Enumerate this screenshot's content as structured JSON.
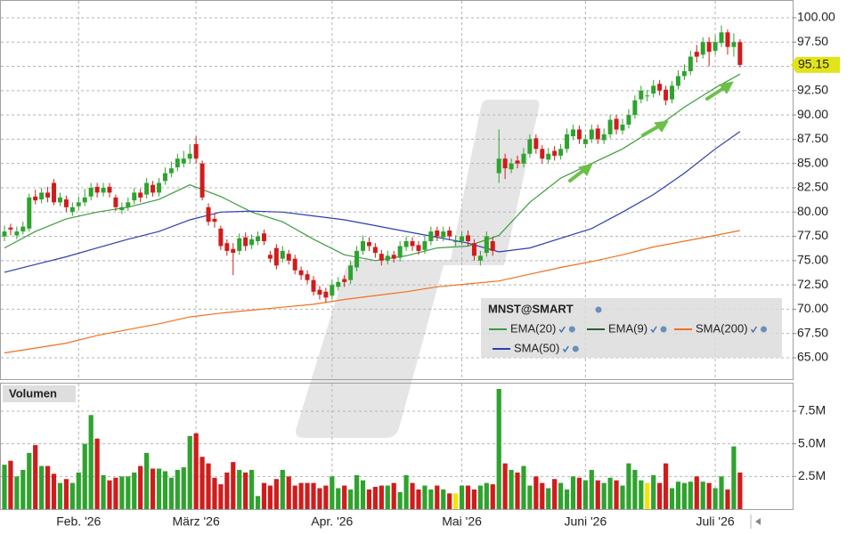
{
  "chart_data": [
    {
      "type": "candlestick",
      "categories": [
        null,
        null,
        null,
        null,
        null,
        null,
        null,
        null,
        null,
        null,
        null,
        null,
        "Feb. '26",
        null,
        null,
        null,
        null,
        null,
        null,
        null,
        null,
        null,
        null,
        null,
        null,
        null,
        null,
        null,
        null,
        null,
        null,
        "März '26",
        null,
        null,
        null,
        null,
        null,
        null,
        null,
        null,
        null,
        null,
        null,
        null,
        null,
        null,
        null,
        null,
        null,
        null,
        null,
        null,
        null,
        "Apr. '26",
        null,
        null,
        null,
        null,
        null,
        null,
        null,
        null,
        null,
        null,
        null,
        null,
        null,
        null,
        null,
        null,
        null,
        null,
        null,
        null,
        "Mai '26",
        null,
        null,
        null,
        null,
        null,
        null,
        null,
        null,
        null,
        null,
        null,
        null,
        null,
        null,
        null,
        null,
        null,
        null,
        null,
        "Juni '26",
        null,
        null,
        null,
        null,
        null,
        null,
        null,
        null,
        null,
        null,
        null,
        null,
        null,
        null,
        null,
        null,
        null,
        null,
        null,
        null,
        "Juli '26",
        null,
        null,
        null,
        null
      ],
      "open": [
        77.5,
        78.4,
        77.6,
        78.0,
        78.3,
        81.6,
        81.3,
        82.0,
        83.0,
        81.0,
        81.3,
        80.0,
        80.6,
        81.0,
        81.6,
        82.6,
        82.0,
        82.6,
        81.5,
        80.2,
        80.5,
        81.2,
        82.0,
        81.8,
        82.8,
        82.0,
        83.2,
        84.0,
        84.6,
        85.0,
        85.5,
        87.0,
        85.0,
        80.5,
        79.3,
        78.3,
        76.8,
        76.2,
        76.0,
        77.4,
        76.6,
        77.0,
        77.8,
        75.6,
        76.3,
        75.2,
        75.7,
        75.2,
        74.0,
        73.6,
        73.0,
        72.0,
        71.8,
        71.4,
        72.3,
        73.1,
        73.0,
        74.3,
        76.0,
        76.9,
        76.4,
        75.7,
        75.0,
        75.6,
        75.3,
        76.4,
        77.0,
        76.6,
        76.1,
        77.0,
        78.1,
        77.4,
        78.1,
        77.0,
        77.0,
        77.6,
        76.8,
        75.0,
        75.8,
        77.0,
        84.0,
        85.5,
        84.4,
        85.3,
        85.0,
        86.0,
        87.6,
        86.5,
        85.4,
        86.3,
        85.8,
        86.5,
        87.8,
        88.5,
        87.0,
        87.5,
        88.6,
        87.4,
        88.0,
        89.6,
        88.4,
        89.0,
        90.0,
        91.6,
        92.0,
        92.2,
        93.2,
        92.6,
        91.6,
        93.0,
        94.0,
        94.5,
        96.5,
        96.2,
        97.5,
        96.6,
        97.4,
        98.5,
        97.0,
        97.5
      ],
      "high": [
        78.6,
        78.8,
        78.5,
        79.0,
        81.9,
        82.3,
        82.5,
        82.6,
        83.4,
        82.0,
        81.7,
        81.0,
        81.6,
        82.4,
        83.0,
        83.0,
        83.0,
        83.0,
        81.8,
        81.0,
        81.5,
        82.5,
        82.4,
        83.5,
        83.2,
        83.5,
        84.6,
        85.2,
        86.0,
        86.3,
        87.0,
        87.8,
        85.3,
        80.9,
        79.8,
        78.6,
        77.2,
        76.8,
        77.8,
        77.9,
        77.7,
        78.0,
        78.2,
        76.0,
        76.7,
        76.5,
        76.1,
        75.6,
        74.4,
        74.0,
        73.4,
        72.4,
        72.2,
        73.0,
        73.3,
        73.5,
        75.0,
        76.5,
        77.6,
        77.4,
        76.8,
        76.1,
        76.0,
        76.0,
        77.0,
        77.5,
        77.4,
        77.0,
        77.5,
        78.5,
        78.5,
        78.5,
        78.5,
        77.6,
        78.0,
        78.1,
        77.2,
        76.0,
        78.0,
        77.4,
        88.5,
        86.0,
        85.5,
        85.8,
        86.6,
        88.0,
        88.0,
        86.9,
        86.6,
        86.8,
        87.0,
        88.6,
        89.0,
        88.9,
        88.0,
        89.0,
        89.0,
        88.6,
        90.0,
        90.0,
        89.6,
        90.6,
        92.0,
        93.0,
        92.6,
        93.6,
        93.6,
        93.0,
        93.5,
        94.6,
        95.2,
        96.6,
        97.2,
        98.0,
        98.0,
        98.2,
        99.2,
        98.8,
        98.4,
        97.8
      ],
      "low": [
        77.0,
        77.6,
        77.2,
        77.7,
        78.0,
        80.8,
        80.9,
        81.0,
        80.7,
        80.6,
        80.0,
        79.6,
        80.2,
        80.6,
        81.2,
        81.5,
        81.6,
        81.5,
        80.1,
        79.8,
        80.1,
        80.8,
        81.0,
        81.4,
        81.6,
        81.6,
        82.8,
        83.6,
        84.2,
        84.6,
        85.0,
        85.0,
        81.2,
        78.6,
        78.4,
        76.1,
        75.5,
        73.5,
        75.6,
        76.0,
        76.2,
        76.6,
        76.6,
        74.8,
        74.1,
        74.8,
        74.6,
        73.6,
        73.0,
        72.6,
        71.4,
        71.0,
        70.7,
        71.0,
        71.9,
        72.3,
        72.6,
        73.9,
        75.6,
        76.0,
        75.3,
        74.5,
        74.6,
        74.8,
        74.9,
        76.0,
        76.0,
        75.6,
        75.7,
        76.6,
        77.0,
        77.0,
        77.1,
        76.5,
        76.6,
        76.5,
        75.0,
        74.5,
        75.4,
        75.5,
        83.0,
        83.4,
        84.0,
        84.5,
        84.6,
        85.6,
        86.0,
        85.0,
        85.0,
        85.3,
        85.4,
        86.1,
        87.4,
        87.0,
        86.6,
        87.1,
        87.0,
        87.0,
        87.6,
        88.0,
        88.0,
        88.6,
        89.6,
        91.2,
        91.4,
        91.8,
        92.0,
        91.0,
        91.2,
        92.6,
        93.6,
        94.1,
        95.4,
        95.8,
        95.0,
        96.2,
        97.0,
        96.2,
        96.0,
        94.9
      ],
      "close": [
        78.0,
        78.2,
        78.0,
        78.5,
        81.5,
        81.2,
        82.0,
        81.5,
        81.0,
        81.5,
        80.5,
        80.5,
        81.0,
        81.5,
        82.5,
        82.0,
        82.5,
        82.0,
        80.5,
        80.5,
        81.0,
        82.0,
        81.5,
        83.0,
        82.0,
        83.0,
        84.0,
        84.5,
        85.5,
        85.5,
        86.0,
        85.5,
        81.5,
        79.0,
        79.0,
        76.5,
        76.0,
        75.8,
        77.3,
        76.5,
        77.2,
        77.5,
        77.0,
        75.2,
        74.5,
        76.0,
        75.0,
        74.0,
        73.5,
        73.0,
        71.8,
        71.5,
        71.2,
        72.5,
        72.8,
        72.8,
        74.5,
        76.0,
        77.0,
        76.5,
        75.8,
        75.0,
        75.5,
        75.2,
        76.5,
        77.0,
        76.5,
        76.0,
        77.0,
        78.0,
        77.5,
        78.0,
        77.5,
        77.0,
        77.5,
        77.0,
        75.5,
        75.5,
        77.5,
        76.0,
        85.5,
        84.5,
        85.0,
        85.0,
        86.0,
        87.5,
        86.5,
        85.5,
        86.0,
        85.8,
        86.5,
        88.0,
        88.5,
        87.5,
        87.5,
        88.5,
        87.5,
        88.0,
        89.5,
        88.5,
        89.0,
        90.0,
        91.5,
        92.5,
        92.0,
        93.0,
        92.5,
        91.5,
        93.0,
        94.0,
        94.5,
        96.0,
        96.0,
        97.5,
        96.5,
        97.5,
        98.5,
        97.0,
        97.5,
        95.15
      ],
      "close_label": "95.15",
      "up_color": "#2ea32e",
      "down_color": "#d01c1c",
      "ylim": [
        63,
        101.5
      ],
      "yticks": [
        {
          "value": 65,
          "label": "65.00"
        },
        {
          "value": 67.5,
          "label": "67.50"
        },
        {
          "value": 70,
          "label": "70.00"
        },
        {
          "value": 72.5,
          "label": "72.50"
        },
        {
          "value": 75,
          "label": "75.00"
        },
        {
          "value": 77.5,
          "label": "77.50"
        },
        {
          "value": 80,
          "label": "80.00"
        },
        {
          "value": 82.5,
          "label": "82.50"
        },
        {
          "value": 85,
          "label": "85.00"
        },
        {
          "value": 87.5,
          "label": "87.50"
        },
        {
          "value": 90,
          "label": "90.00"
        },
        {
          "value": 92.5,
          "label": "92.50"
        },
        {
          "value": 95,
          "label": "95.00"
        },
        {
          "value": 97.5,
          "label": "97.50"
        },
        {
          "value": 100,
          "label": "100.00"
        }
      ],
      "grid": true,
      "legend_title": "MNST@SMART",
      "overlays": [
        {
          "name": "EMA(20)",
          "color": "#3c9c3c",
          "x": [
            0,
            5,
            10,
            15,
            20,
            25,
            30,
            35,
            40,
            45,
            50,
            55,
            60,
            65,
            70,
            75,
            80,
            85,
            90,
            95,
            100,
            105,
            110,
            115,
            119
          ],
          "values": [
            76.3,
            78.0,
            79.3,
            80.0,
            80.5,
            81.3,
            82.8,
            81.6,
            80.0,
            79.0,
            77.2,
            75.6,
            75.0,
            75.5,
            76.3,
            76.5,
            77.6,
            81.0,
            83.5,
            85.0,
            86.5,
            88.5,
            90.8,
            92.8,
            94.2
          ]
        },
        {
          "name": "EMA(9)",
          "color": "#2e5e2e"
        },
        {
          "name": "SMA(200)",
          "color": "#f07020",
          "x": [
            0,
            5,
            10,
            15,
            20,
            25,
            30,
            35,
            40,
            45,
            50,
            55,
            60,
            65,
            70,
            75,
            80,
            85,
            90,
            95,
            100,
            105,
            110,
            115,
            119
          ],
          "values": [
            65.5,
            66.0,
            66.5,
            67.3,
            67.9,
            68.5,
            69.2,
            69.6,
            69.9,
            70.2,
            70.5,
            71.0,
            71.4,
            71.8,
            72.3,
            72.6,
            72.9,
            73.6,
            74.3,
            74.9,
            75.6,
            76.4,
            77.0,
            77.6,
            78.1
          ]
        },
        {
          "name": "SMA(50)",
          "color": "#2a3fb0",
          "x": [
            0,
            5,
            10,
            15,
            20,
            25,
            30,
            35,
            40,
            45,
            50,
            55,
            60,
            65,
            70,
            75,
            80,
            85,
            90,
            95,
            100,
            105,
            110,
            115,
            119
          ],
          "values": [
            73.8,
            74.6,
            75.4,
            76.3,
            77.2,
            78.0,
            79.2,
            80.0,
            80.1,
            80.0,
            79.6,
            79.2,
            78.6,
            78.0,
            77.4,
            76.8,
            75.9,
            76.3,
            77.3,
            78.3,
            80.0,
            81.8,
            84.0,
            86.5,
            88.3
          ]
        }
      ]
    },
    {
      "type": "bar",
      "title": "Volumen",
      "values": [
        3400000,
        3700000,
        2500000,
        3000000,
        4300000,
        4900000,
        3300000,
        3300000,
        2700000,
        2000000,
        2300000,
        2000000,
        2800000,
        5000000,
        7200000,
        5400000,
        2600000,
        2200000,
        2400000,
        2500000,
        2500000,
        2800000,
        3300000,
        4300000,
        3100000,
        3100000,
        2900000,
        2400000,
        3000000,
        3200000,
        5600000,
        5800000,
        4000000,
        3500000,
        2400000,
        1900000,
        2800000,
        3600000,
        3000000,
        2800000,
        3000000,
        1000000,
        2000000,
        1800000,
        2300000,
        3000000,
        2500000,
        1800000,
        2000000,
        2000000,
        2000000,
        1600000,
        1800000,
        2500000,
        1600000,
        1800000,
        1500000,
        2600000,
        2200000,
        1500000,
        1700000,
        1800000,
        1800000,
        2000000,
        1300000,
        2600000,
        2000000,
        1500000,
        1800000,
        1500000,
        1800000,
        1500000,
        1200000,
        1200000,
        1800000,
        1800000,
        1500000,
        1800000,
        2000000,
        1900000,
        9200000,
        3500000,
        3000000,
        2800000,
        3300000,
        1800000,
        2500000,
        2000000,
        1600000,
        2300000,
        2000000,
        1500000,
        2500000,
        2400000,
        2200000,
        3000000,
        2200000,
        2000000,
        2400000,
        2200000,
        1800000,
        3500000,
        3000000,
        2200000,
        2000000,
        2600000,
        2000000,
        3500000,
        1600000,
        2100000,
        2000000,
        2100000,
        2500000,
        2100000,
        2000000,
        1600000,
        2500000,
        1500000,
        4800000,
        2800000
      ],
      "up_color": "#2ea32e",
      "down_color": "#d01c1c",
      "flat_color": "#f2e600",
      "ylim": [
        0,
        9500000
      ],
      "yticks": [
        {
          "value": 2500000,
          "label": "2.5M"
        },
        {
          "value": 5000000,
          "label": "5.0M"
        },
        {
          "value": 7500000,
          "label": "7.5M"
        }
      ]
    }
  ]
}
